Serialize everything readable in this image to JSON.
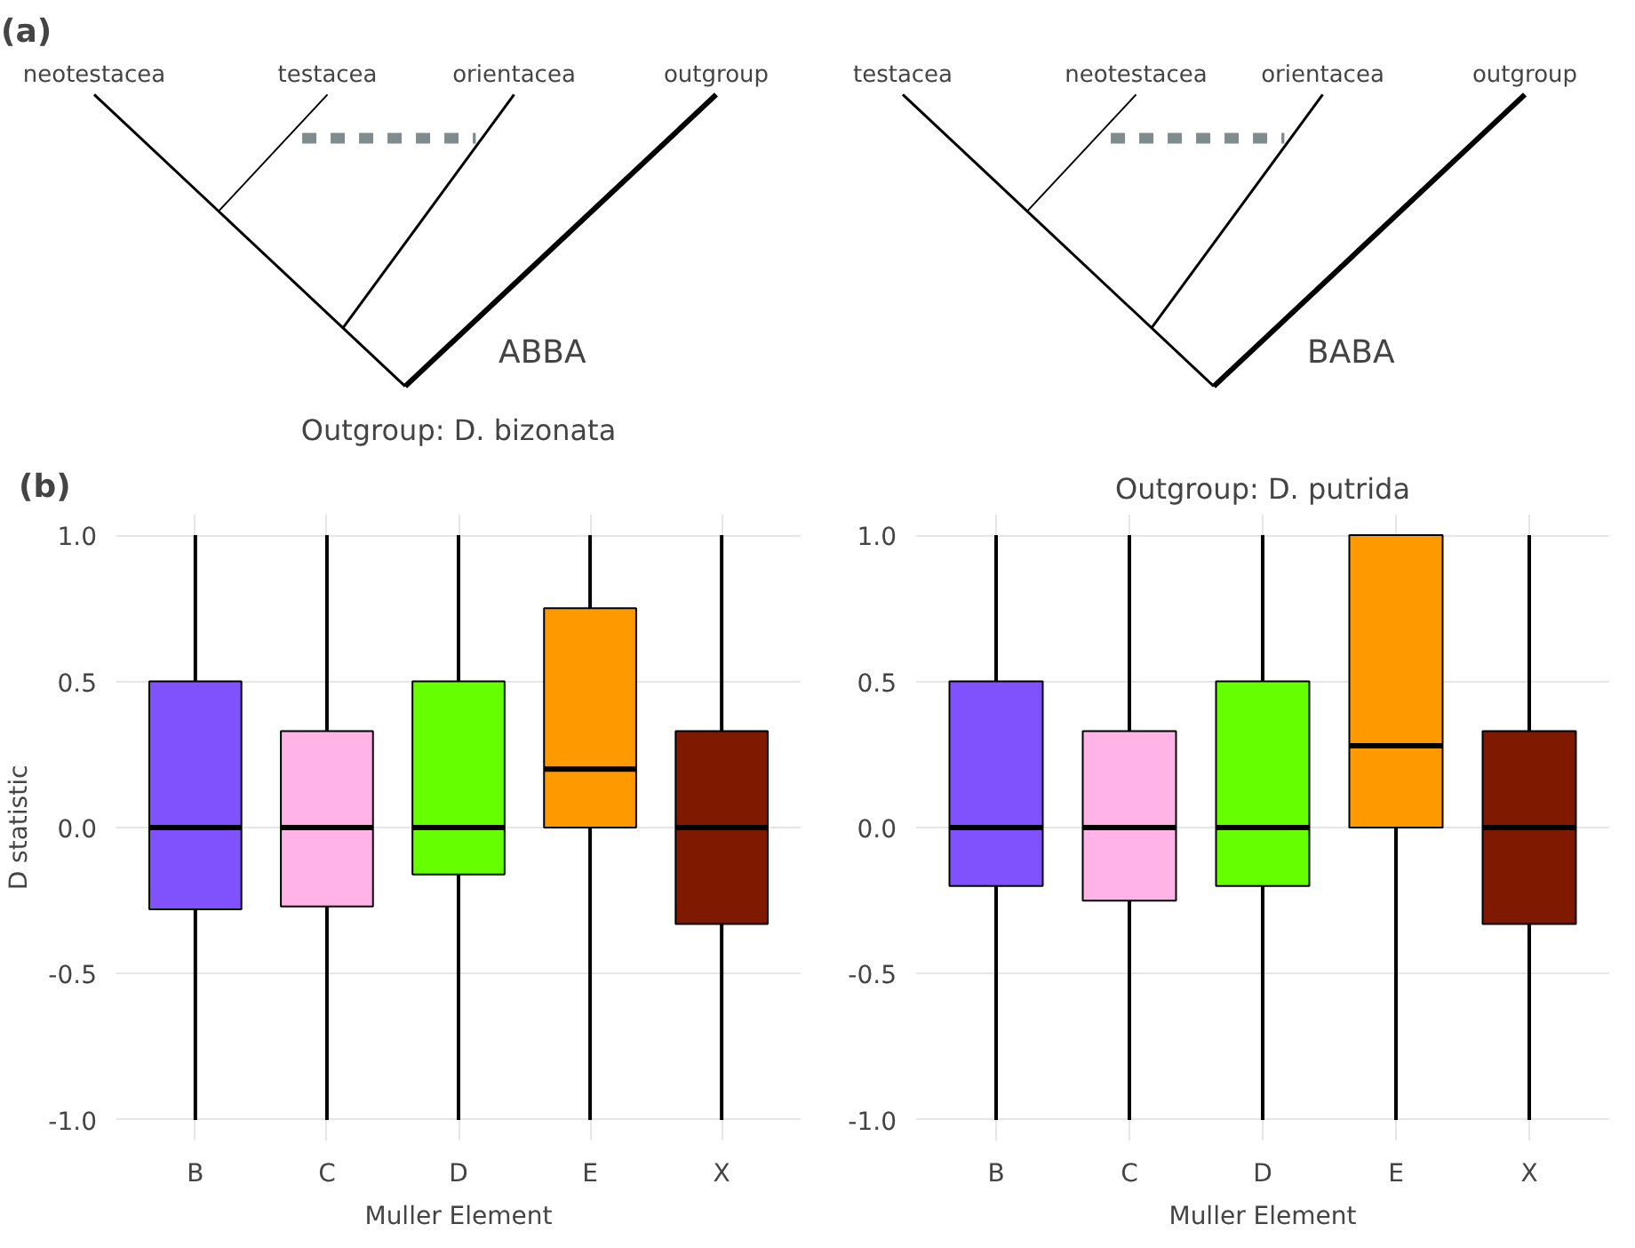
{
  "chart_data": [
    {
      "type": "other",
      "title": "(a)",
      "annotations": [
        "neotestacea",
        "testacea",
        "orientacea",
        "outgroup",
        "ABBA"
      ]
    },
    {
      "type": "other",
      "annotations": [
        "testacea",
        "neotestacea",
        "orientacea",
        "outgroup",
        "BABA"
      ]
    },
    {
      "type": "box",
      "title": "Outgroup: D. bizonata",
      "xlabel": "Muller Element",
      "ylabel": "D statistic",
      "annotations": [
        "(b)"
      ],
      "categories": [
        "B",
        "C",
        "D",
        "E",
        "X"
      ],
      "colors": [
        "#8052fe",
        "#ffb3e6",
        "#66ff00",
        "#ff9900",
        "#7f1a00"
      ],
      "boxes": [
        {
          "low": -1.0,
          "q1": -0.28,
          "median": 0.0,
          "q3": 0.5,
          "high": 1.0
        },
        {
          "low": -1.0,
          "q1": -0.27,
          "median": 0.0,
          "q3": 0.33,
          "high": 1.0
        },
        {
          "low": -1.0,
          "q1": -0.16,
          "median": 0.0,
          "q3": 0.5,
          "high": 1.0
        },
        {
          "low": -1.0,
          "q1": 0.0,
          "median": 0.2,
          "q3": 0.75,
          "high": 1.0
        },
        {
          "low": -1.0,
          "q1": -0.33,
          "median": 0.0,
          "q3": 0.33,
          "high": 1.0
        }
      ],
      "ylim": [
        -1.07,
        1.07
      ],
      "yticks": [
        {
          "value": -1,
          "label": "-1.0"
        },
        {
          "value": -0.5,
          "label": "-0.5"
        },
        {
          "value": 0,
          "label": "0.0"
        },
        {
          "value": 0.5,
          "label": "0.5"
        },
        {
          "value": 1,
          "label": "1.0"
        }
      ],
      "grid": true
    },
    {
      "type": "box",
      "title": "Outgroup: D. putrida",
      "xlabel": "Muller Element",
      "categories": [
        "B",
        "C",
        "D",
        "E",
        "X"
      ],
      "colors": [
        "#8052fe",
        "#ffb3e6",
        "#66ff00",
        "#ff9900",
        "#7f1a00"
      ],
      "boxes": [
        {
          "low": -1.0,
          "q1": -0.2,
          "median": 0.0,
          "q3": 0.5,
          "high": 1.0
        },
        {
          "low": -1.0,
          "q1": -0.25,
          "median": 0.0,
          "q3": 0.33,
          "high": 1.0
        },
        {
          "low": -1.0,
          "q1": -0.2,
          "median": 0.0,
          "q3": 0.5,
          "high": 1.0
        },
        {
          "low": -1.0,
          "q1": 0.0,
          "median": 0.28,
          "q3": 1.0,
          "high": 1.0
        },
        {
          "low": -1.0,
          "q1": -0.33,
          "median": 0.0,
          "q3": 0.33,
          "high": 1.0
        }
      ],
      "ylim": [
        -1.07,
        1.07
      ],
      "yticks": [
        {
          "value": -1,
          "label": "-1.0"
        },
        {
          "value": -0.5,
          "label": "-0.5"
        },
        {
          "value": 0,
          "label": "0.0"
        },
        {
          "value": 0.5,
          "label": "0.5"
        },
        {
          "value": 1,
          "label": "1.0"
        }
      ],
      "grid": true
    }
  ]
}
